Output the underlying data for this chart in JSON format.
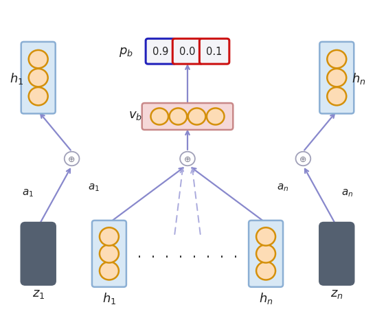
{
  "bg_color": "#ffffff",
  "node_fill_peach": "#FDDCB5",
  "node_stroke_orange": "#D4900A",
  "node_stroke_blue": "#8BAFD4",
  "node_fill_blue_bg": "#D8E8F5",
  "dark_box_color": "#546070",
  "plus_circle_edge": "#A0A0B8",
  "arrow_color": "#8888CC",
  "arrow_color_dashed": "#AAAADD",
  "vb_bg": "#F5D8D8",
  "vb_stroke": "#C88888",
  "pb_blue_stroke": "#2222BB",
  "pb_red_stroke": "#CC1111",
  "pb_bg": "#F4F4F8",
  "text_color": "#222222",
  "label_fontsize": 13,
  "sub_fontsize": 11
}
